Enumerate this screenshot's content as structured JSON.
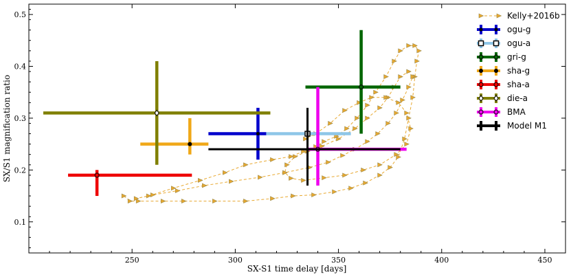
{
  "chart_data": {
    "type": "scatter",
    "title": "",
    "xlabel": "SX-S1 time delay [days]",
    "ylabel": "SX/S1 magnification ratio",
    "xlim": [
      200,
      460
    ],
    "ylim": [
      0.04,
      0.52
    ],
    "xticks": [
      250,
      300,
      350,
      400,
      450
    ],
    "yticks": [
      0.1,
      0.2,
      0.3,
      0.4,
      0.5
    ],
    "xtick_labels": [
      "250",
      "300",
      "350",
      "400",
      "450"
    ],
    "ytick_labels": [
      "0.1",
      "0.2",
      "0.3",
      "0.4",
      "0.5"
    ],
    "grid": false,
    "legend_position": "top-right",
    "series": [
      {
        "name": "Kelly+2016b",
        "style": "dashed-triangles",
        "color": "#e8a830",
        "marker_color": "#9a8a4a",
        "points": [
          [
            246,
            0.15
          ],
          [
            249,
            0.14
          ],
          [
            253,
            0.14
          ],
          [
            265,
            0.14
          ],
          [
            275,
            0.14
          ],
          [
            290,
            0.14
          ],
          [
            305,
            0.14
          ],
          [
            318,
            0.145
          ],
          [
            328,
            0.15
          ],
          [
            338,
            0.152
          ],
          [
            348,
            0.158
          ],
          [
            356,
            0.165
          ],
          [
            363,
            0.175
          ],
          [
            370,
            0.19
          ],
          [
            375,
            0.205
          ],
          [
            379,
            0.225
          ],
          [
            382,
            0.26
          ],
          [
            384,
            0.3
          ],
          [
            386,
            0.34
          ],
          [
            387,
            0.38
          ],
          [
            388,
            0.41
          ],
          [
            389,
            0.43
          ],
          [
            387,
            0.44
          ],
          [
            384,
            0.44
          ],
          [
            380,
            0.43
          ],
          [
            377,
            0.41
          ],
          [
            373,
            0.38
          ],
          [
            368,
            0.35
          ],
          [
            364,
            0.325
          ],
          [
            359,
            0.3
          ],
          [
            354,
            0.28
          ],
          [
            349,
            0.265
          ],
          [
            343,
            0.255
          ],
          [
            339,
            0.245
          ],
          [
            333,
            0.236
          ],
          [
            327,
            0.226
          ],
          [
            318,
            0.22
          ],
          [
            305,
            0.21
          ],
          [
            295,
            0.195
          ],
          [
            283,
            0.18
          ],
          [
            270,
            0.165
          ],
          [
            258,
            0.15
          ],
          [
            252,
            0.145
          ],
          [
            260,
            0.152
          ],
          [
            272,
            0.16
          ],
          [
            285,
            0.17
          ],
          [
            298,
            0.178
          ],
          [
            312,
            0.186
          ],
          [
            324,
            0.195
          ],
          [
            336,
            0.205
          ],
          [
            345,
            0.215
          ],
          [
            352,
            0.228
          ],
          [
            358,
            0.24
          ],
          [
            364,
            0.255
          ],
          [
            369,
            0.27
          ],
          [
            374,
            0.29
          ],
          [
            378,
            0.31
          ],
          [
            381,
            0.335
          ],
          [
            384,
            0.36
          ],
          [
            386,
            0.38
          ],
          [
            384,
            0.39
          ],
          [
            380,
            0.38
          ],
          [
            377,
            0.36
          ],
          [
            374,
            0.34
          ],
          [
            370,
            0.32
          ],
          [
            364,
            0.3
          ],
          [
            358,
            0.28
          ],
          [
            350,
            0.26
          ],
          [
            342,
            0.246
          ],
          [
            335,
            0.236
          ],
          [
            329,
            0.226
          ],
          [
            325,
            0.21
          ],
          [
            324,
            0.195
          ],
          [
            327,
            0.184
          ],
          [
            333,
            0.18
          ],
          [
            343,
            0.185
          ],
          [
            353,
            0.19
          ],
          [
            362,
            0.2
          ],
          [
            370,
            0.21
          ],
          [
            378,
            0.23
          ],
          [
            383,
            0.25
          ],
          [
            385,
            0.28
          ],
          [
            383,
            0.31
          ],
          [
            379,
            0.33
          ],
          [
            373,
            0.34
          ],
          [
            366,
            0.34
          ],
          [
            360,
            0.33
          ],
          [
            353,
            0.315
          ],
          [
            346,
            0.29
          ],
          [
            339,
            0.27
          ],
          [
            334,
            0.26
          ]
        ]
      },
      {
        "name": "ogu-g",
        "color": "#0000cc",
        "marker": "plus",
        "x": 311,
        "y": 0.27,
        "xerr": [
          287,
          315
        ],
        "yerr": [
          0.22,
          0.32
        ]
      },
      {
        "name": "ogu-a",
        "color": "#8ec6e8",
        "marker": "square",
        "x": 335,
        "y": 0.27,
        "xerr": [
          315,
          356
        ],
        "yerr": [
          0.27,
          0.27
        ]
      },
      {
        "name": "gri-g",
        "color": "#006600",
        "marker": "circle",
        "x": 361,
        "y": 0.36,
        "xerr": [
          334,
          380
        ],
        "yerr": [
          0.27,
          0.47
        ]
      },
      {
        "name": "sha-g",
        "color": "#f0a818",
        "marker": "star",
        "x": 278,
        "y": 0.25,
        "xerr": [
          254,
          287
        ],
        "yerr": [
          0.23,
          0.3
        ]
      },
      {
        "name": "sha-a",
        "color": "#ee0000",
        "marker": "circle",
        "x": 233,
        "y": 0.19,
        "xerr": [
          219,
          279
        ],
        "yerr": [
          0.15,
          0.2
        ]
      },
      {
        "name": "die-a",
        "color": "#808000",
        "marker": "diamond",
        "x": 262,
        "y": 0.31,
        "xerr": [
          207,
          317
        ],
        "yerr": [
          0.21,
          0.41
        ]
      },
      {
        "name": "BMA",
        "color": "#ee00ee",
        "marker": "circle",
        "x": 340,
        "y": 0.24,
        "xerr": [
          335,
          383
        ],
        "yerr": [
          0.17,
          0.36
        ]
      },
      {
        "name": "Model M1",
        "color": "#000000",
        "marker": "none",
        "x": 335,
        "y": 0.24,
        "xerr": [
          287,
          380
        ],
        "yerr": [
          0.17,
          0.32
        ]
      }
    ]
  }
}
